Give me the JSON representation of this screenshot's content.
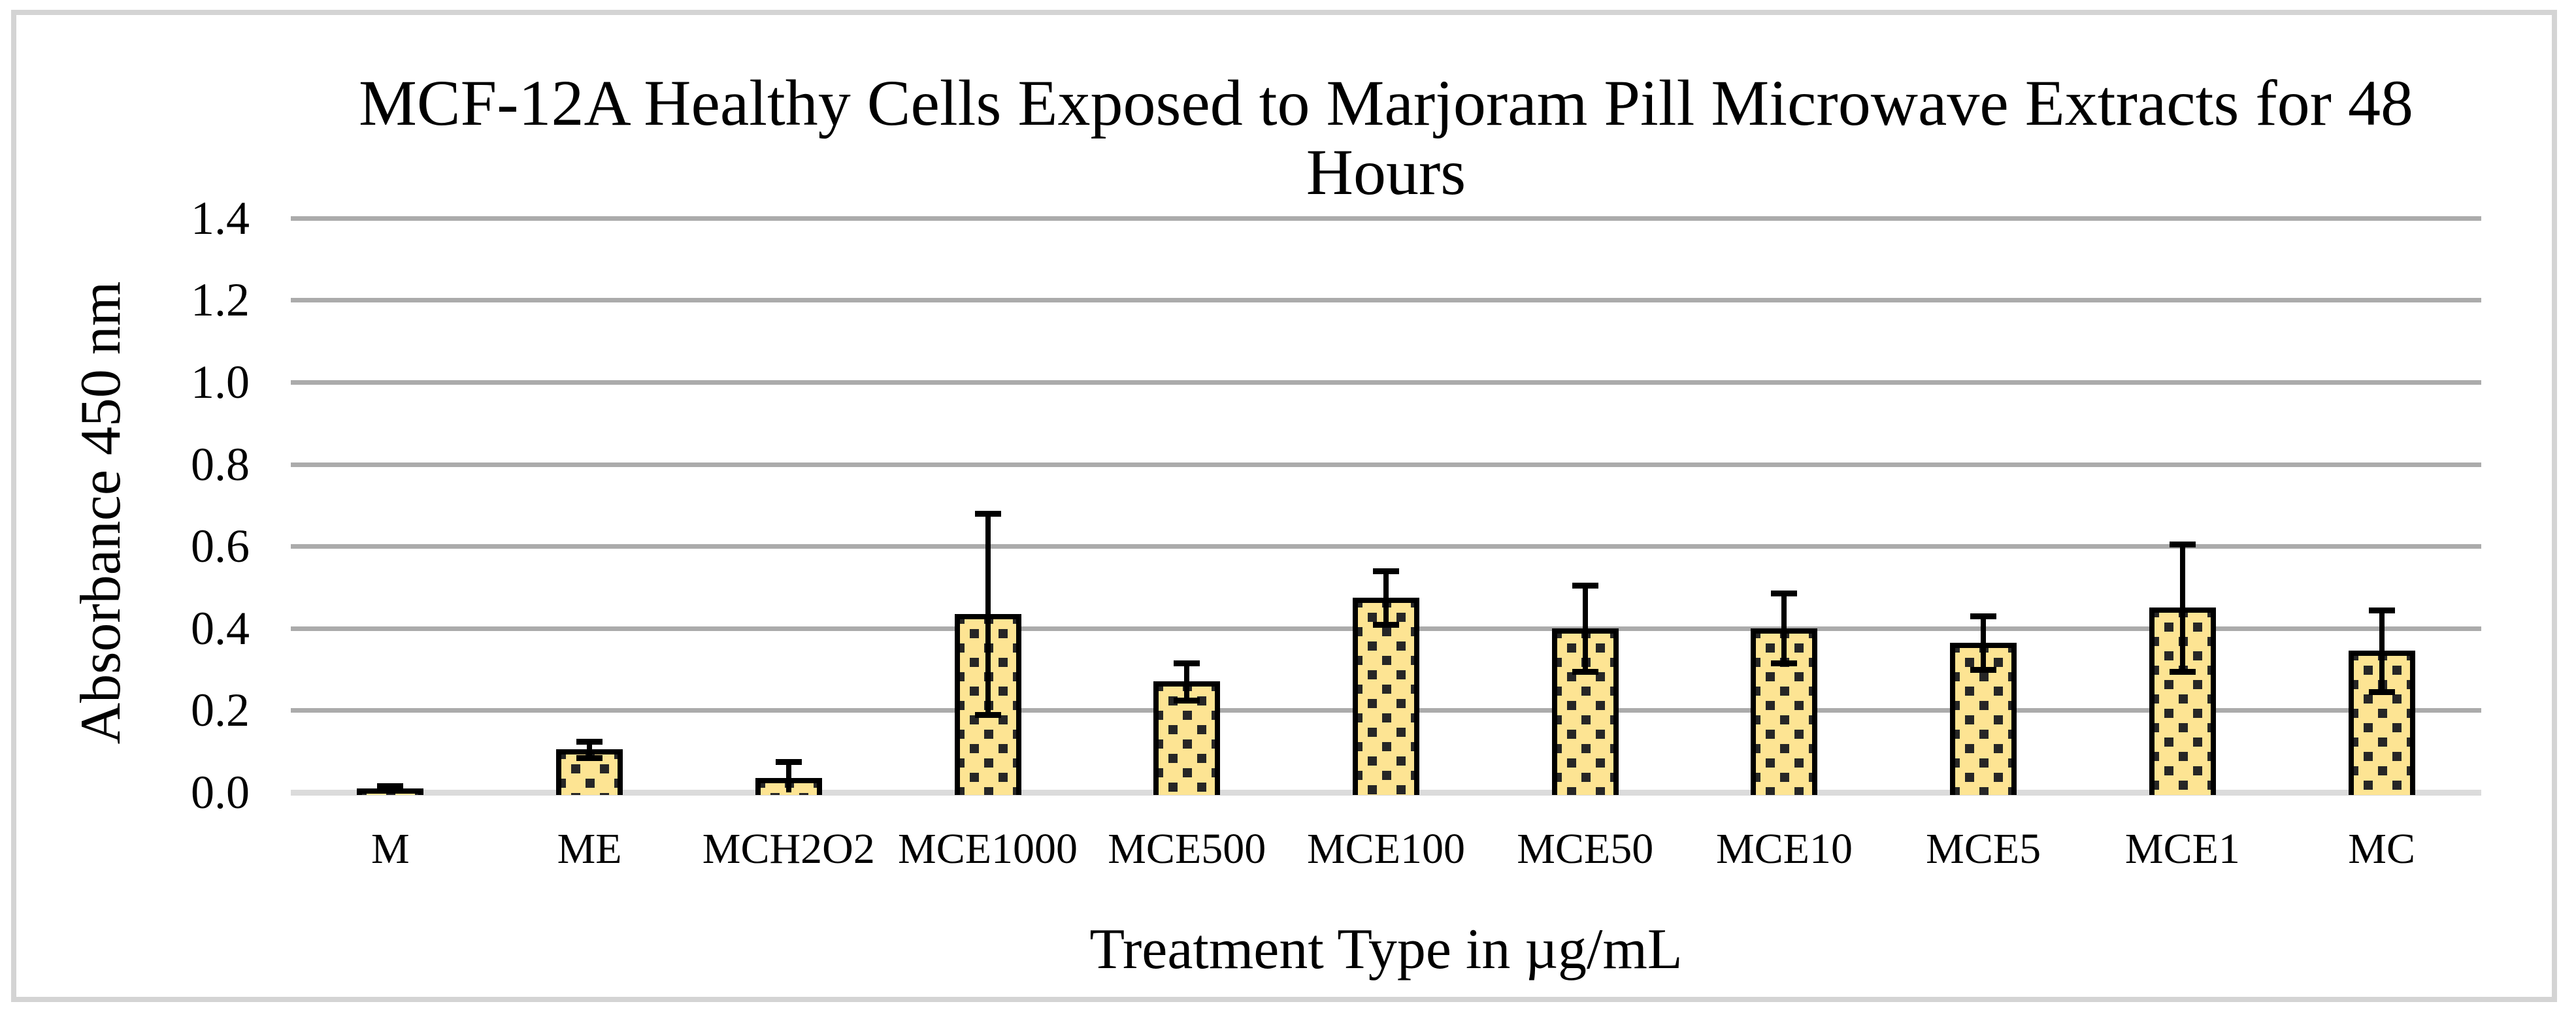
{
  "chart_data": {
    "type": "bar",
    "title": "MCF-12A Healthy Cells Exposed to Marjoram Pill Microwave Extracts for 48 Hours",
    "title_lines": [
      "MCF-12A Healthy Cells Exposed to Marjoram Pill Microwave Extracts for 48",
      "Hours"
    ],
    "xlabel": "Treatment Type in µg/mL",
    "ylabel": "Absorbance 450 nm",
    "categories": [
      "M",
      "ME",
      "MCH2O2",
      "MCE1000",
      "MCE500",
      "MCE100",
      "MCE50",
      "MCE10",
      "MCE5",
      "MCE1",
      "MC"
    ],
    "values": [
      0.01,
      0.105,
      0.035,
      0.435,
      0.27,
      0.475,
      0.4,
      0.4,
      0.365,
      0.45,
      0.345
    ],
    "error_bars": [
      0.006,
      0.02,
      0.04,
      0.245,
      0.045,
      0.065,
      0.105,
      0.085,
      0.065,
      0.155,
      0.1
    ],
    "ylim": [
      0,
      1.4
    ],
    "ytick_step": 0.2,
    "ytick_labels": [
      "0.0",
      "0.2",
      "0.4",
      "0.6",
      "0.8",
      "1.0",
      "1.2",
      "1.4"
    ],
    "grid": "horizontal-only",
    "legend": "none",
    "colors": {
      "bar_fill": "#fde493",
      "bar_speckle": "#262626",
      "bar_border": "#000000",
      "error_bar": "#000000",
      "gridline": "#ababab",
      "axis_line": "#dbdbdb",
      "text": "#000000",
      "frame_border": "#d4d4d4",
      "background": "#ffffff"
    }
  }
}
